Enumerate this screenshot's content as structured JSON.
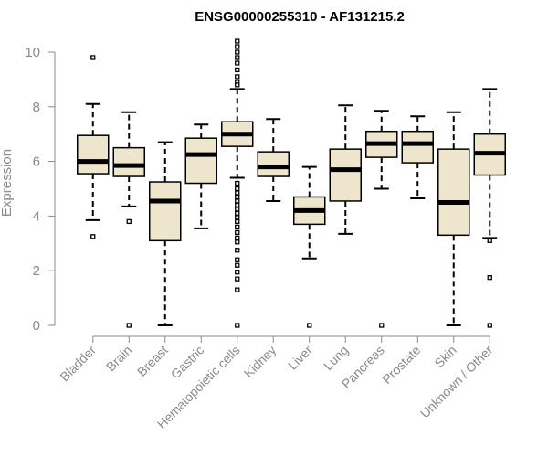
{
  "chart_data": {
    "type": "box",
    "title": "ENSG00000255310 - AF131215.2",
    "ylabel": "Expression",
    "xlabel": "",
    "ylim": [
      0,
      10.5
    ],
    "yticks": [
      0,
      2,
      4,
      6,
      8,
      10
    ],
    "box_fill": "#ede5cc",
    "categories": [
      "Bladder",
      "Brain",
      "Breast",
      "Gastric",
      "Hematopoietic cells",
      "Kidney",
      "Liver",
      "Lung",
      "Pancreas",
      "Prostate",
      "Skin",
      "Unknown / Other"
    ],
    "boxes": [
      {
        "min": 3.85,
        "q1": 5.55,
        "median": 6.0,
        "q3": 6.95,
        "max": 8.1,
        "outliers": [
          9.8,
          3.25
        ]
      },
      {
        "min": 4.35,
        "q1": 5.45,
        "median": 5.85,
        "q3": 6.5,
        "max": 7.8,
        "outliers": [
          3.8,
          0.0
        ]
      },
      {
        "min": 0.0,
        "q1": 3.1,
        "median": 4.55,
        "q3": 5.25,
        "max": 6.7,
        "outliers": []
      },
      {
        "min": 3.55,
        "q1": 5.2,
        "median": 6.25,
        "q3": 6.85,
        "max": 7.35,
        "outliers": []
      },
      {
        "min": 5.4,
        "q1": 6.55,
        "median": 7.0,
        "q3": 7.45,
        "max": 8.65,
        "outliers": [
          10.4,
          10.2,
          10.0,
          9.8,
          9.6,
          9.35,
          9.1,
          8.9,
          8.8,
          5.2,
          5.0,
          4.85,
          4.7,
          4.55,
          4.4,
          4.25,
          4.1,
          3.95,
          3.8,
          3.6,
          3.4,
          3.2,
          3.05,
          2.75,
          2.4,
          2.2,
          1.95,
          1.7,
          1.3,
          0.0
        ]
      },
      {
        "min": 4.55,
        "q1": 5.45,
        "median": 5.8,
        "q3": 6.35,
        "max": 7.55,
        "outliers": []
      },
      {
        "min": 2.45,
        "q1": 3.7,
        "median": 4.2,
        "q3": 4.7,
        "max": 5.8,
        "outliers": [
          0.0
        ]
      },
      {
        "min": 3.35,
        "q1": 4.55,
        "median": 5.7,
        "q3": 6.45,
        "max": 8.05,
        "outliers": []
      },
      {
        "min": 5.0,
        "q1": 6.15,
        "median": 6.65,
        "q3": 7.1,
        "max": 7.85,
        "outliers": [
          0.0
        ]
      },
      {
        "min": 4.65,
        "q1": 5.95,
        "median": 6.65,
        "q3": 7.1,
        "max": 7.65,
        "outliers": []
      },
      {
        "min": 0.0,
        "q1": 3.3,
        "median": 4.5,
        "q3": 6.45,
        "max": 7.8,
        "outliers": []
      },
      {
        "min": 3.2,
        "q1": 5.5,
        "median": 6.3,
        "q3": 7.0,
        "max": 8.65,
        "outliers": [
          3.1,
          1.75,
          0.0
        ]
      }
    ]
  }
}
